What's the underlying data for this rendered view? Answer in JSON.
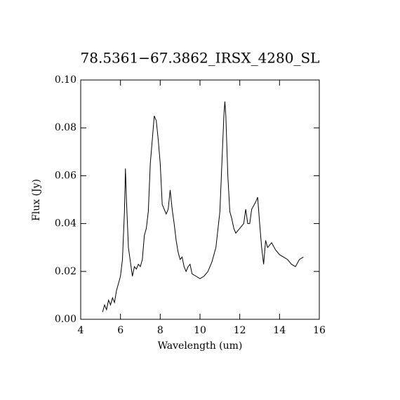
{
  "chart_data": {
    "type": "line",
    "title": "78.5361−67.3862_IRSX_4280_SL",
    "x_label": "Wavelength (um)",
    "y_label": "Flux (Jy)",
    "x": [
      5.1,
      5.2,
      5.3,
      5.4,
      5.5,
      5.6,
      5.7,
      5.8,
      5.9,
      6.0,
      6.1,
      6.2,
      6.25,
      6.3,
      6.4,
      6.5,
      6.6,
      6.7,
      6.8,
      6.9,
      7.0,
      7.1,
      7.2,
      7.3,
      7.4,
      7.5,
      7.6,
      7.7,
      7.8,
      7.9,
      8.0,
      8.1,
      8.2,
      8.3,
      8.4,
      8.5,
      8.6,
      8.7,
      8.8,
      8.9,
      9.0,
      9.1,
      9.2,
      9.3,
      9.4,
      9.5,
      9.6,
      9.8,
      10.0,
      10.2,
      10.4,
      10.6,
      10.8,
      11.0,
      11.1,
      11.2,
      11.25,
      11.3,
      11.4,
      11.5,
      11.6,
      11.7,
      11.8,
      12.0,
      12.2,
      12.3,
      12.4,
      12.5,
      12.6,
      12.8,
      12.9,
      13.0,
      13.1,
      13.2,
      13.3,
      13.4,
      13.6,
      13.8,
      14.0,
      14.2,
      14.4,
      14.6,
      14.8,
      15.0,
      15.2
    ],
    "series": [
      {
        "color": "#000000",
        "values": [
          0.003,
          0.006,
          0.004,
          0.008,
          0.006,
          0.009,
          0.007,
          0.012,
          0.015,
          0.018,
          0.025,
          0.045,
          0.063,
          0.05,
          0.03,
          0.024,
          0.018,
          0.022,
          0.021,
          0.023,
          0.022,
          0.025,
          0.035,
          0.038,
          0.045,
          0.065,
          0.075,
          0.085,
          0.083,
          0.075,
          0.065,
          0.048,
          0.046,
          0.044,
          0.046,
          0.054,
          0.046,
          0.04,
          0.033,
          0.028,
          0.025,
          0.026,
          0.022,
          0.02,
          0.022,
          0.023,
          0.019,
          0.018,
          0.017,
          0.018,
          0.02,
          0.024,
          0.03,
          0.045,
          0.065,
          0.085,
          0.091,
          0.085,
          0.06,
          0.045,
          0.042,
          0.038,
          0.036,
          0.038,
          0.04,
          0.046,
          0.04,
          0.04,
          0.046,
          0.049,
          0.051,
          0.04,
          0.03,
          0.023,
          0.033,
          0.03,
          0.032,
          0.029,
          0.027,
          0.026,
          0.025,
          0.023,
          0.022,
          0.025,
          0.026
        ]
      }
    ],
    "xlim": [
      4,
      16
    ],
    "xticks": [
      4,
      6,
      8,
      10,
      12,
      14,
      16
    ],
    "ylim": [
      0,
      0.1
    ],
    "yticks": [
      {
        "value": 0,
        "label": "0.00"
      },
      {
        "value": 0.02,
        "label": "0.02"
      },
      {
        "value": 0.04,
        "label": "0.04"
      },
      {
        "value": 0.06,
        "label": "0.06"
      },
      {
        "value": 0.08,
        "label": "0.08"
      },
      {
        "value": 0.1,
        "label": "0.10"
      }
    ]
  }
}
